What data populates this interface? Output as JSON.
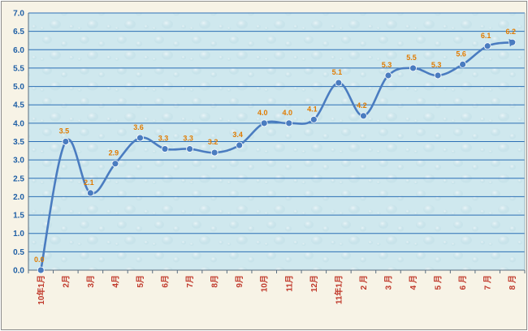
{
  "chart_data": {
    "type": "line",
    "title": "",
    "xlabel": "",
    "ylabel": "",
    "ylim": [
      0,
      7
    ],
    "yticks": [
      "0.0",
      "0.5",
      "1.0",
      "1.5",
      "2.0",
      "2.5",
      "3.0",
      "3.5",
      "4.0",
      "4.5",
      "5.0",
      "5.5",
      "6.0",
      "6.5",
      "7.0"
    ],
    "categories": [
      "10年1月",
      "2月",
      "3月",
      "4月",
      "5月",
      "6月",
      "7月",
      "8月",
      "9月",
      "10月",
      "11月",
      "12月",
      "11年1月",
      "2 月",
      "3 月",
      "4 月",
      "5 月",
      "6 月",
      "7 月",
      "8 月"
    ],
    "values": [
      0.0,
      3.5,
      2.1,
      2.9,
      3.6,
      3.3,
      3.3,
      3.2,
      3.4,
      4.0,
      4.0,
      4.1,
      5.1,
      4.2,
      5.3,
      5.5,
      5.3,
      5.6,
      6.1,
      6.2
    ],
    "data_labels": [
      "0.0",
      "3.5",
      "2.1",
      "2.9",
      "3.6",
      "3.3",
      "3.3",
      "3.2",
      "3.4",
      "4.0",
      "4.0",
      "4.1",
      "5.1",
      "4.2",
      "5.3",
      "5.5",
      "5.3",
      "5.6",
      "6.1",
      "6.2"
    ],
    "grid": true,
    "legend": "none",
    "colors": {
      "line": "#4a7cc0",
      "marker": "#4a7cc0",
      "gridline": "#2c6fb5",
      "plot_bg": "#cfe8ee",
      "frame_bg": "#f7f3e6",
      "ytick": "#1f5fa5",
      "xtick": "#c0392b",
      "data_label": "#e07b00"
    }
  }
}
